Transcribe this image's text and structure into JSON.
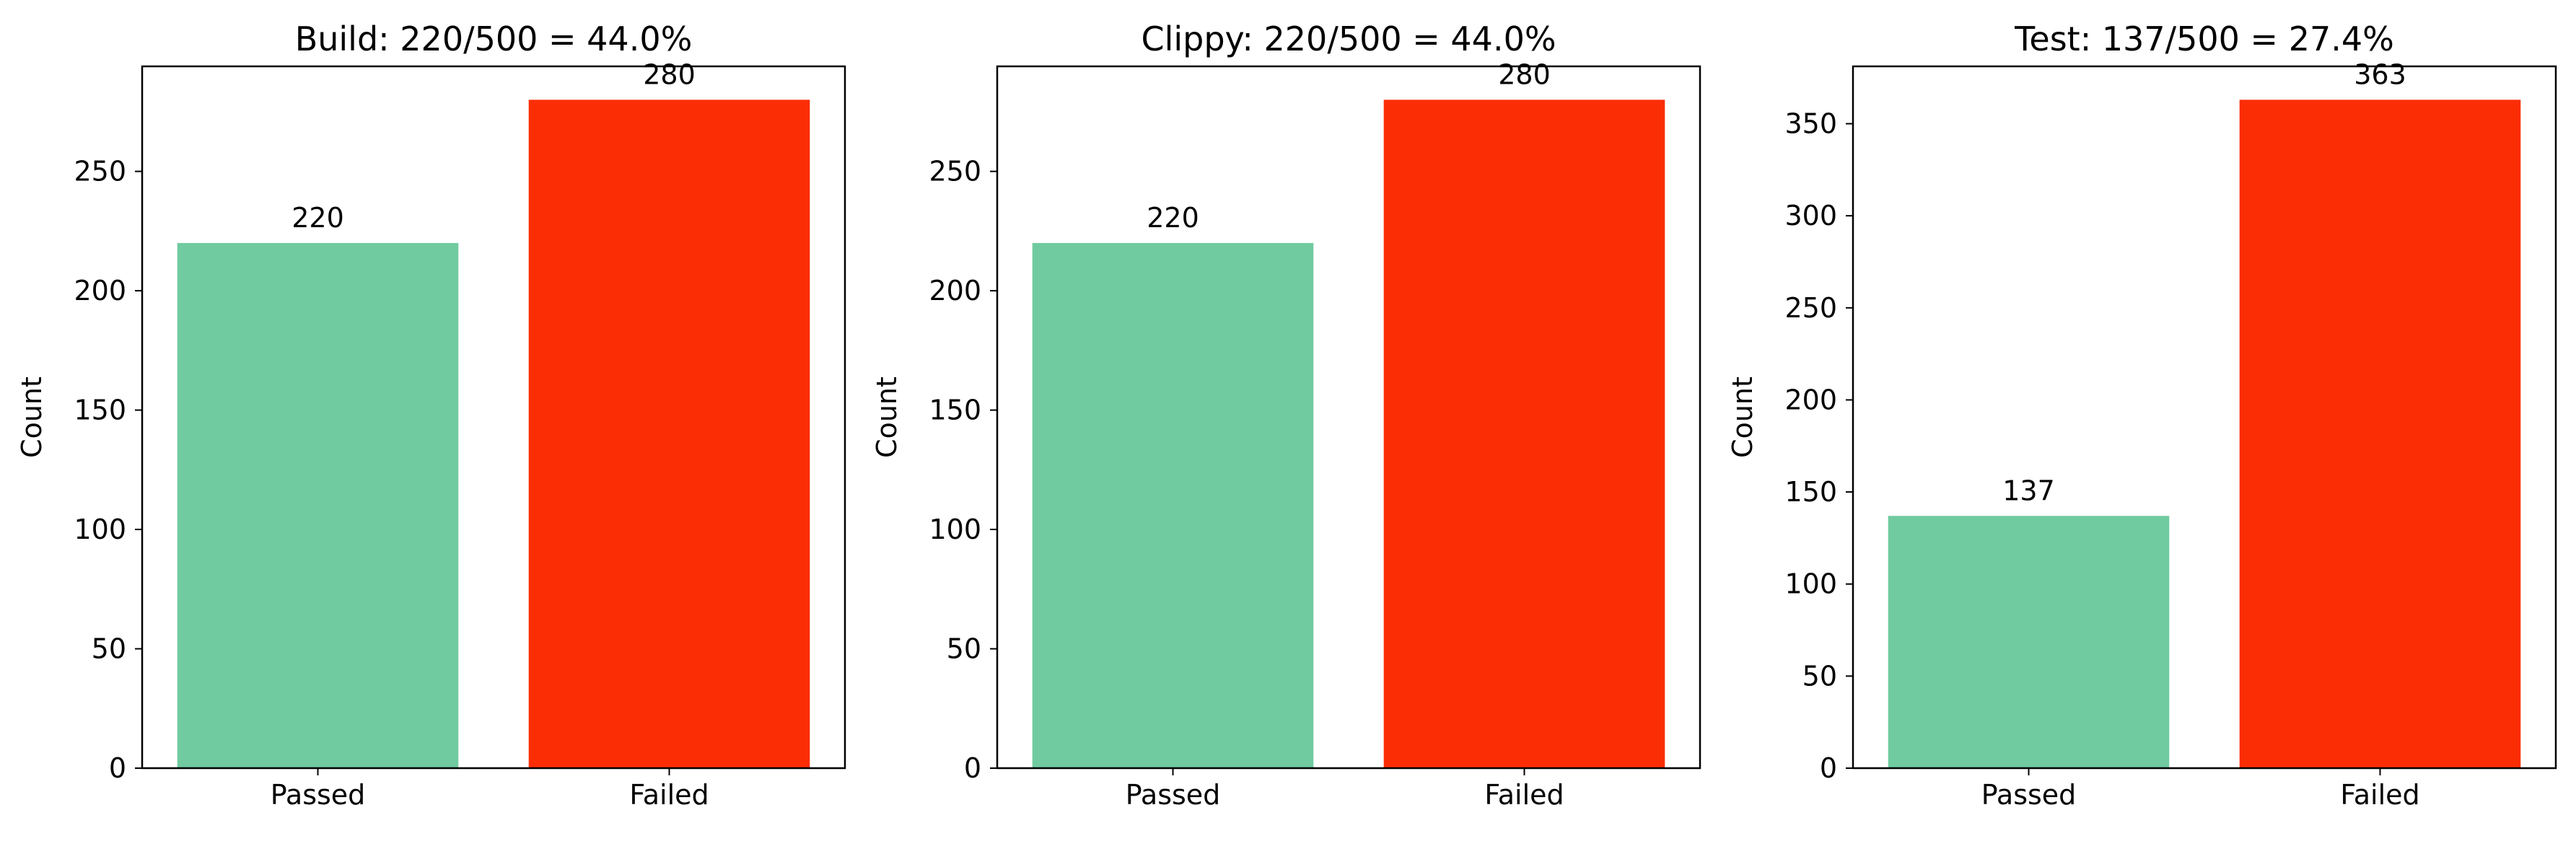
{
  "chart_data": [
    {
      "type": "bar",
      "title": "Build: 220/500 = 44.0%",
      "categories": [
        "Passed",
        "Failed"
      ],
      "values": [
        220,
        280
      ],
      "colors": [
        "#70CBA0",
        "#FB2D04"
      ],
      "xlabel": "",
      "ylabel": "Count",
      "ylim": [
        0,
        294
      ],
      "yticks": [
        0,
        50,
        100,
        150,
        200,
        250
      ],
      "bar_labels": [
        "220",
        "280"
      ],
      "grid": false
    },
    {
      "type": "bar",
      "title": "Clippy: 220/500 = 44.0%",
      "categories": [
        "Passed",
        "Failed"
      ],
      "values": [
        220,
        280
      ],
      "colors": [
        "#70CBA0",
        "#FB2D04"
      ],
      "xlabel": "",
      "ylabel": "Count",
      "ylim": [
        0,
        294
      ],
      "yticks": [
        0,
        50,
        100,
        150,
        200,
        250
      ],
      "bar_labels": [
        "220",
        "280"
      ],
      "grid": false
    },
    {
      "type": "bar",
      "title": "Test: 137/500 = 27.4%",
      "categories": [
        "Passed",
        "Failed"
      ],
      "values": [
        137,
        363
      ],
      "colors": [
        "#70CBA0",
        "#FB2D04"
      ],
      "xlabel": "",
      "ylabel": "Count",
      "ylim": [
        0,
        381.15
      ],
      "yticks": [
        0,
        50,
        100,
        150,
        200,
        250,
        300,
        350
      ],
      "bar_labels": [
        "137",
        "363"
      ],
      "grid": false
    }
  ]
}
